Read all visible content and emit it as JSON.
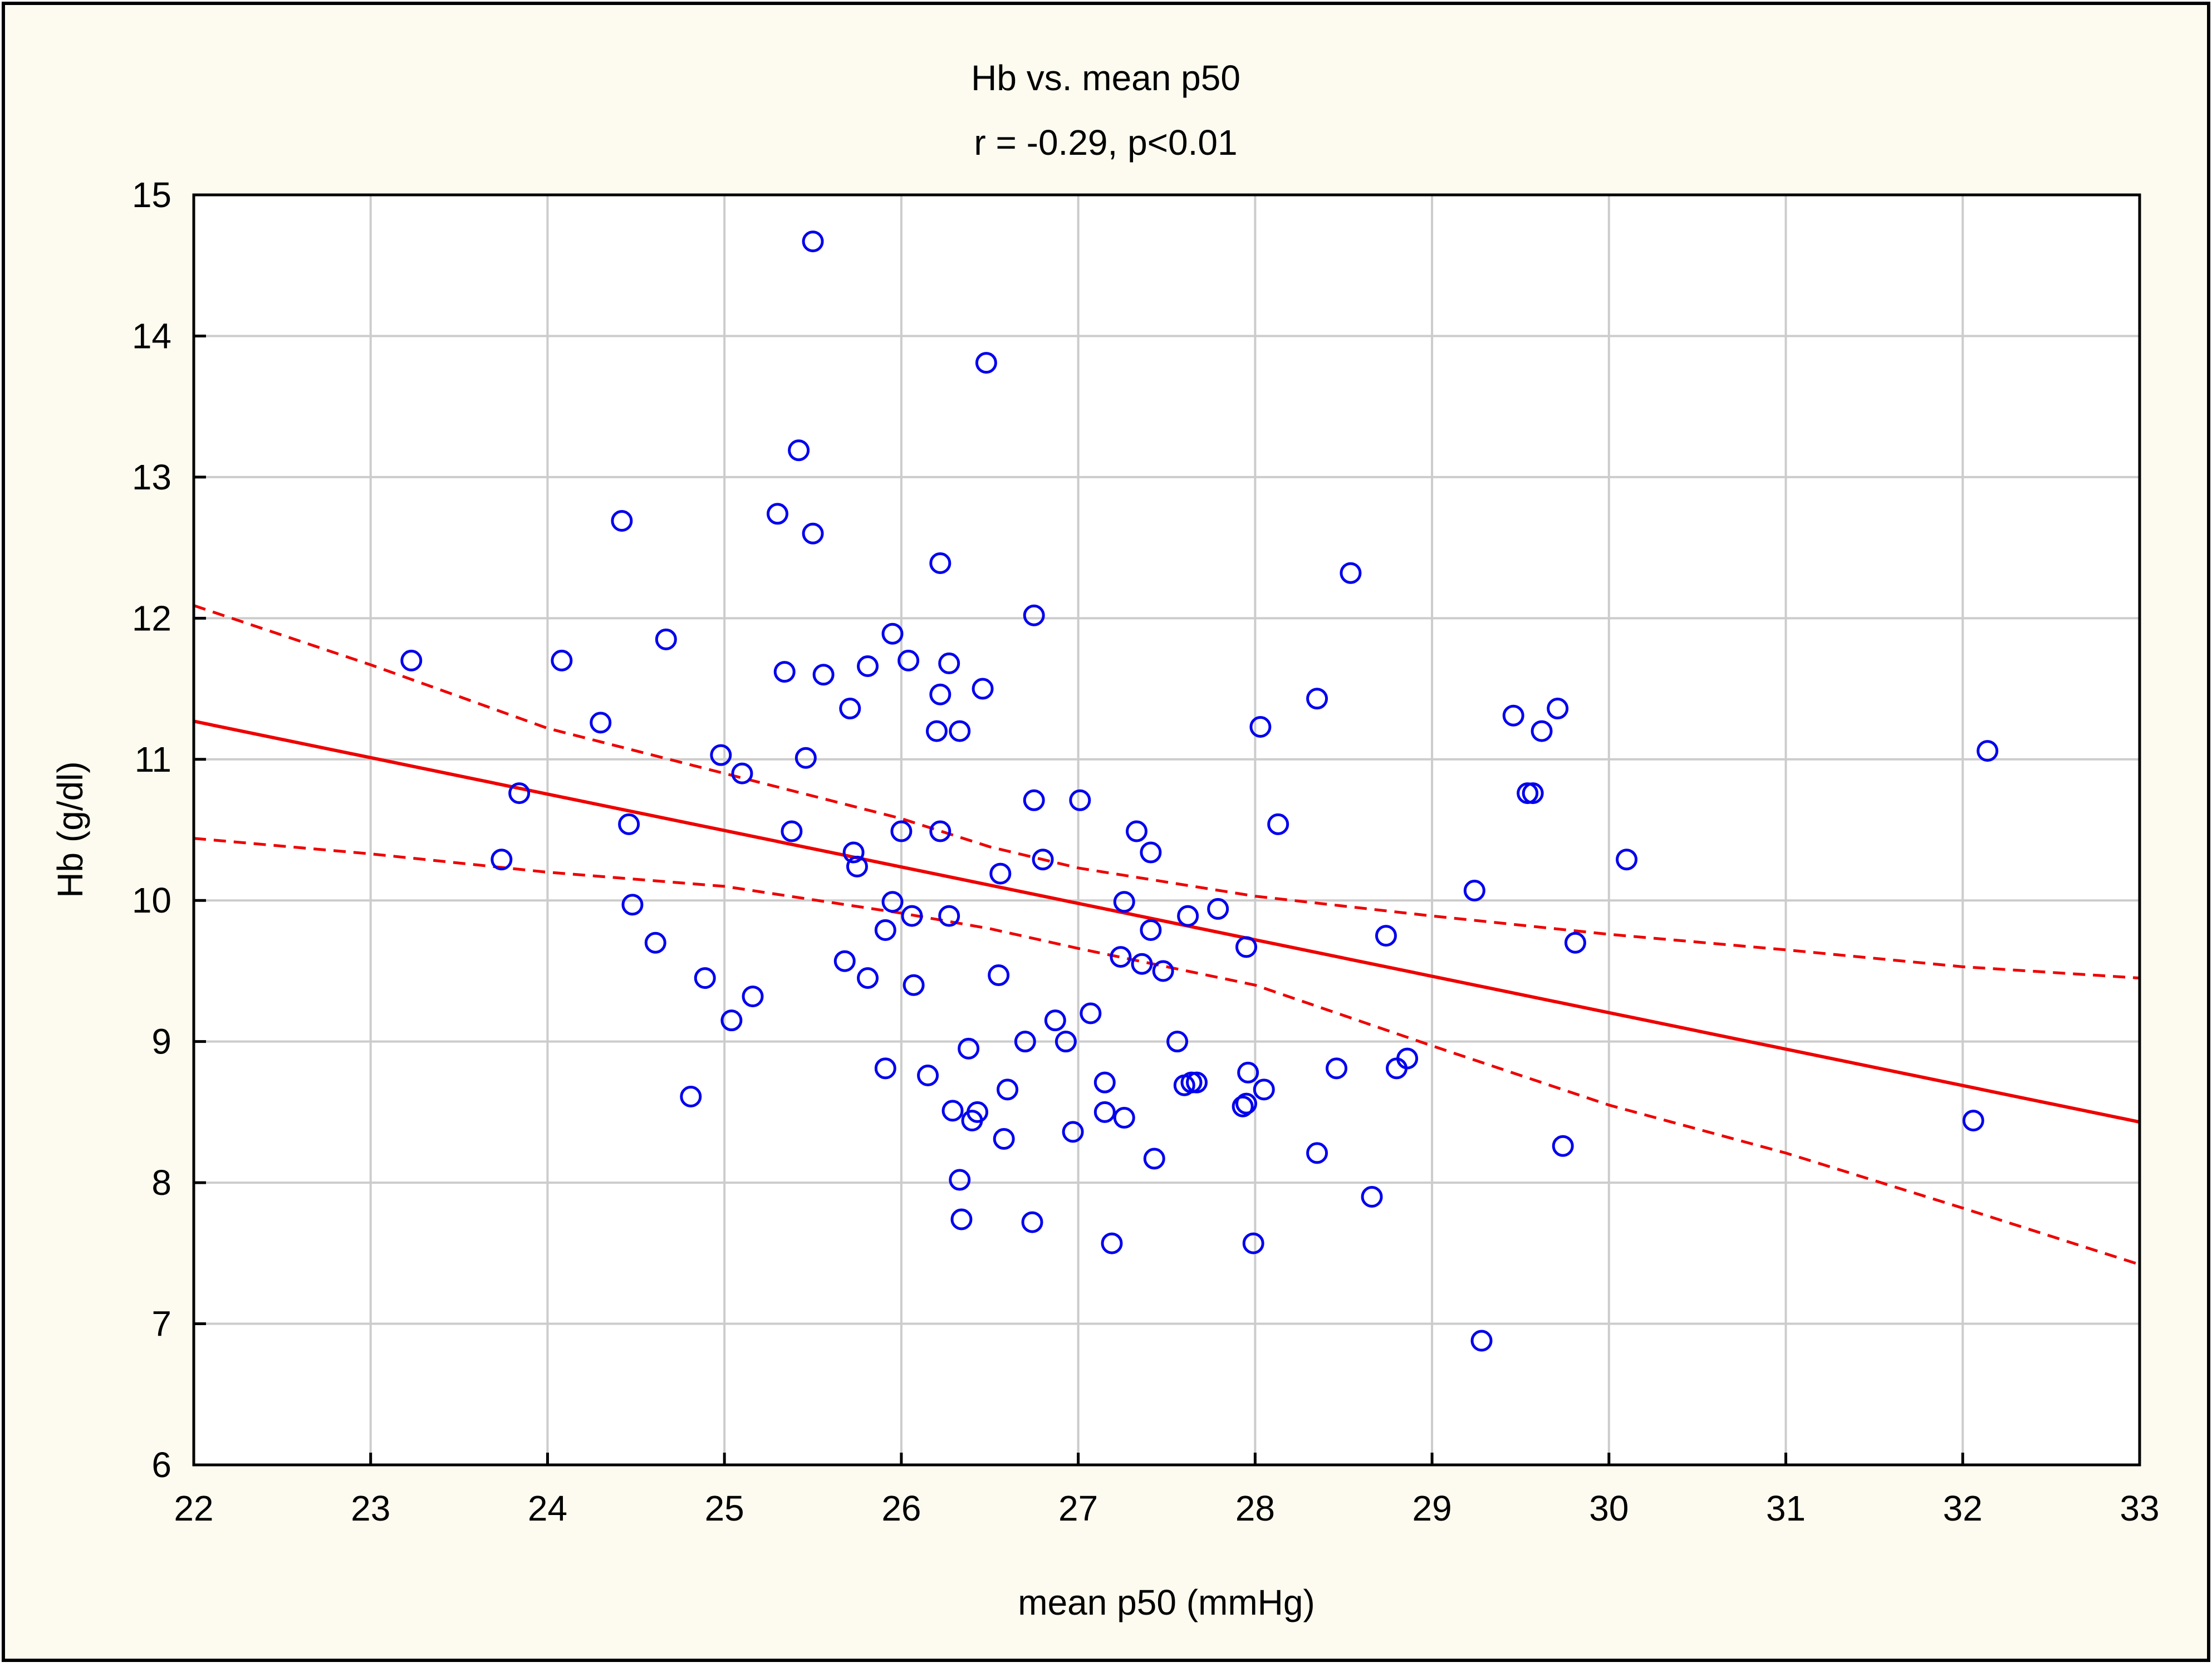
{
  "colors": {
    "frame_background": "#fdfbef",
    "plot_background": "#ffffff",
    "grid": "#cccccc",
    "points": "#0000ee",
    "fit_line": "#ee0000",
    "axis": "#000000"
  },
  "chart_data": {
    "type": "scatter",
    "title": "Hb vs. mean p50",
    "subtitle": "r = -0.29, p<0.01",
    "xlabel": "mean p50 (mmHg)",
    "ylabel": "Hb (g/dl)",
    "xlim": [
      22,
      33
    ],
    "ylim": [
      6,
      15
    ],
    "xticks": [
      22,
      23,
      24,
      25,
      26,
      27,
      28,
      29,
      30,
      31,
      32,
      33
    ],
    "yticks": [
      6,
      7,
      8,
      9,
      10,
      11,
      12,
      13,
      14,
      15
    ],
    "grid": true,
    "regression": {
      "x": [
        22,
        33
      ],
      "y": [
        11.27,
        8.43
      ]
    },
    "confidence_band": {
      "lower": {
        "x": [
          22,
          23,
          24,
          25,
          26,
          26.5,
          27,
          28,
          29,
          30,
          31,
          32,
          33
        ],
        "y": [
          10.44,
          10.33,
          10.2,
          10.1,
          9.91,
          9.8,
          9.66,
          9.4,
          8.97,
          8.55,
          8.21,
          7.82,
          7.42
        ]
      },
      "upper": {
        "x": [
          22,
          23,
          24,
          25,
          26,
          26.5,
          27,
          28,
          29,
          30,
          31,
          32,
          33
        ],
        "y": [
          12.09,
          11.67,
          11.22,
          10.9,
          10.58,
          10.38,
          10.23,
          10.03,
          9.89,
          9.76,
          9.65,
          9.53,
          9.45
        ]
      }
    },
    "points": [
      [
        23.23,
        11.7
      ],
      [
        23.74,
        10.29
      ],
      [
        23.84,
        10.76
      ],
      [
        24.08,
        11.7
      ],
      [
        24.3,
        11.26
      ],
      [
        24.42,
        12.69
      ],
      [
        24.46,
        10.54
      ],
      [
        24.48,
        9.97
      ],
      [
        24.61,
        9.7
      ],
      [
        24.67,
        11.85
      ],
      [
        24.81,
        8.61
      ],
      [
        24.89,
        9.45
      ],
      [
        24.98,
        11.03
      ],
      [
        25.04,
        9.15
      ],
      [
        25.1,
        10.9
      ],
      [
        25.16,
        9.32
      ],
      [
        25.3,
        12.74
      ],
      [
        25.34,
        11.62
      ],
      [
        25.38,
        10.49
      ],
      [
        25.42,
        13.19
      ],
      [
        25.46,
        11.01
      ],
      [
        25.5,
        14.67
      ],
      [
        25.5,
        12.6
      ],
      [
        25.56,
        11.6
      ],
      [
        25.68,
        9.57
      ],
      [
        25.71,
        11.36
      ],
      [
        25.73,
        10.34
      ],
      [
        25.75,
        10.24
      ],
      [
        25.81,
        11.66
      ],
      [
        25.81,
        9.45
      ],
      [
        25.91,
        9.79
      ],
      [
        25.91,
        8.81
      ],
      [
        25.95,
        11.89
      ],
      [
        25.95,
        9.99
      ],
      [
        26.0,
        10.49
      ],
      [
        26.04,
        11.7
      ],
      [
        26.06,
        9.89
      ],
      [
        26.07,
        9.4
      ],
      [
        26.15,
        8.76
      ],
      [
        26.2,
        11.2
      ],
      [
        26.22,
        12.39
      ],
      [
        26.22,
        11.46
      ],
      [
        26.22,
        10.49
      ],
      [
        26.27,
        11.68
      ],
      [
        26.27,
        9.89
      ],
      [
        26.29,
        8.51
      ],
      [
        26.33,
        11.2
      ],
      [
        26.33,
        8.02
      ],
      [
        26.34,
        7.74
      ],
      [
        26.38,
        8.95
      ],
      [
        26.4,
        8.44
      ],
      [
        26.43,
        8.5
      ],
      [
        26.46,
        11.5
      ],
      [
        26.48,
        13.81
      ],
      [
        26.55,
        9.47
      ],
      [
        26.56,
        10.19
      ],
      [
        26.58,
        8.31
      ],
      [
        26.6,
        8.66
      ],
      [
        26.7,
        9.0
      ],
      [
        26.74,
        7.72
      ],
      [
        26.75,
        12.02
      ],
      [
        26.75,
        10.71
      ],
      [
        26.8,
        10.29
      ],
      [
        26.87,
        9.15
      ],
      [
        26.93,
        9.0
      ],
      [
        26.97,
        8.36
      ],
      [
        27.01,
        10.71
      ],
      [
        27.07,
        9.2
      ],
      [
        27.15,
        8.71
      ],
      [
        27.15,
        8.5
      ],
      [
        27.19,
        7.57
      ],
      [
        27.24,
        9.6
      ],
      [
        27.26,
        8.46
      ],
      [
        27.26,
        9.99
      ],
      [
        27.33,
        10.49
      ],
      [
        27.36,
        9.55
      ],
      [
        27.41,
        10.34
      ],
      [
        27.41,
        9.79
      ],
      [
        27.43,
        8.17
      ],
      [
        27.48,
        9.5
      ],
      [
        27.56,
        9.0
      ],
      [
        27.6,
        8.69
      ],
      [
        27.62,
        9.89
      ],
      [
        27.64,
        8.71
      ],
      [
        27.67,
        8.71
      ],
      [
        27.79,
        9.94
      ],
      [
        27.93,
        8.54
      ],
      [
        27.95,
        8.56
      ],
      [
        27.95,
        9.67
      ],
      [
        27.96,
        8.78
      ],
      [
        27.99,
        7.57
      ],
      [
        28.03,
        11.23
      ],
      [
        28.05,
        8.66
      ],
      [
        28.13,
        10.54
      ],
      [
        28.35,
        11.43
      ],
      [
        28.35,
        8.21
      ],
      [
        28.46,
        8.81
      ],
      [
        28.54,
        12.32
      ],
      [
        28.66,
        7.9
      ],
      [
        28.74,
        9.75
      ],
      [
        28.8,
        8.81
      ],
      [
        28.86,
        8.88
      ],
      [
        29.24,
        10.07
      ],
      [
        29.28,
        6.88
      ],
      [
        29.46,
        11.31
      ],
      [
        29.54,
        10.76
      ],
      [
        29.57,
        10.76
      ],
      [
        29.62,
        11.2
      ],
      [
        29.71,
        11.36
      ],
      [
        29.74,
        8.26
      ],
      [
        29.81,
        9.7
      ],
      [
        30.1,
        10.29
      ],
      [
        32.06,
        8.44
      ],
      [
        32.14,
        11.06
      ]
    ]
  }
}
